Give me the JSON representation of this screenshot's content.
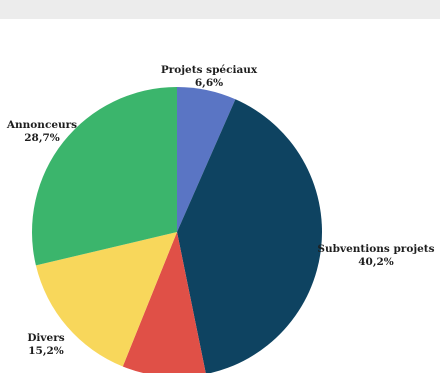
{
  "chart_data": {
    "type": "pie",
    "title": "",
    "start": "top",
    "direction": "clockwise",
    "slices": [
      {
        "label": "Projets spéciaux",
        "value_label": "6,6%",
        "value": 6.6,
        "color": "#5a75c4"
      },
      {
        "label": "Subventions projets",
        "value_label": "40,2%",
        "value": 40.2,
        "color": "#0e4361"
      },
      {
        "label": "",
        "value_label": "",
        "value": 9.3,
        "color": "#e05047"
      },
      {
        "label": "Divers",
        "value_label": "15,2%",
        "value": 15.2,
        "color": "#f8d75b"
      },
      {
        "label": "Annonceurs",
        "value_label": "28,7%",
        "value": 28.7,
        "color": "#3bb56c"
      }
    ]
  }
}
